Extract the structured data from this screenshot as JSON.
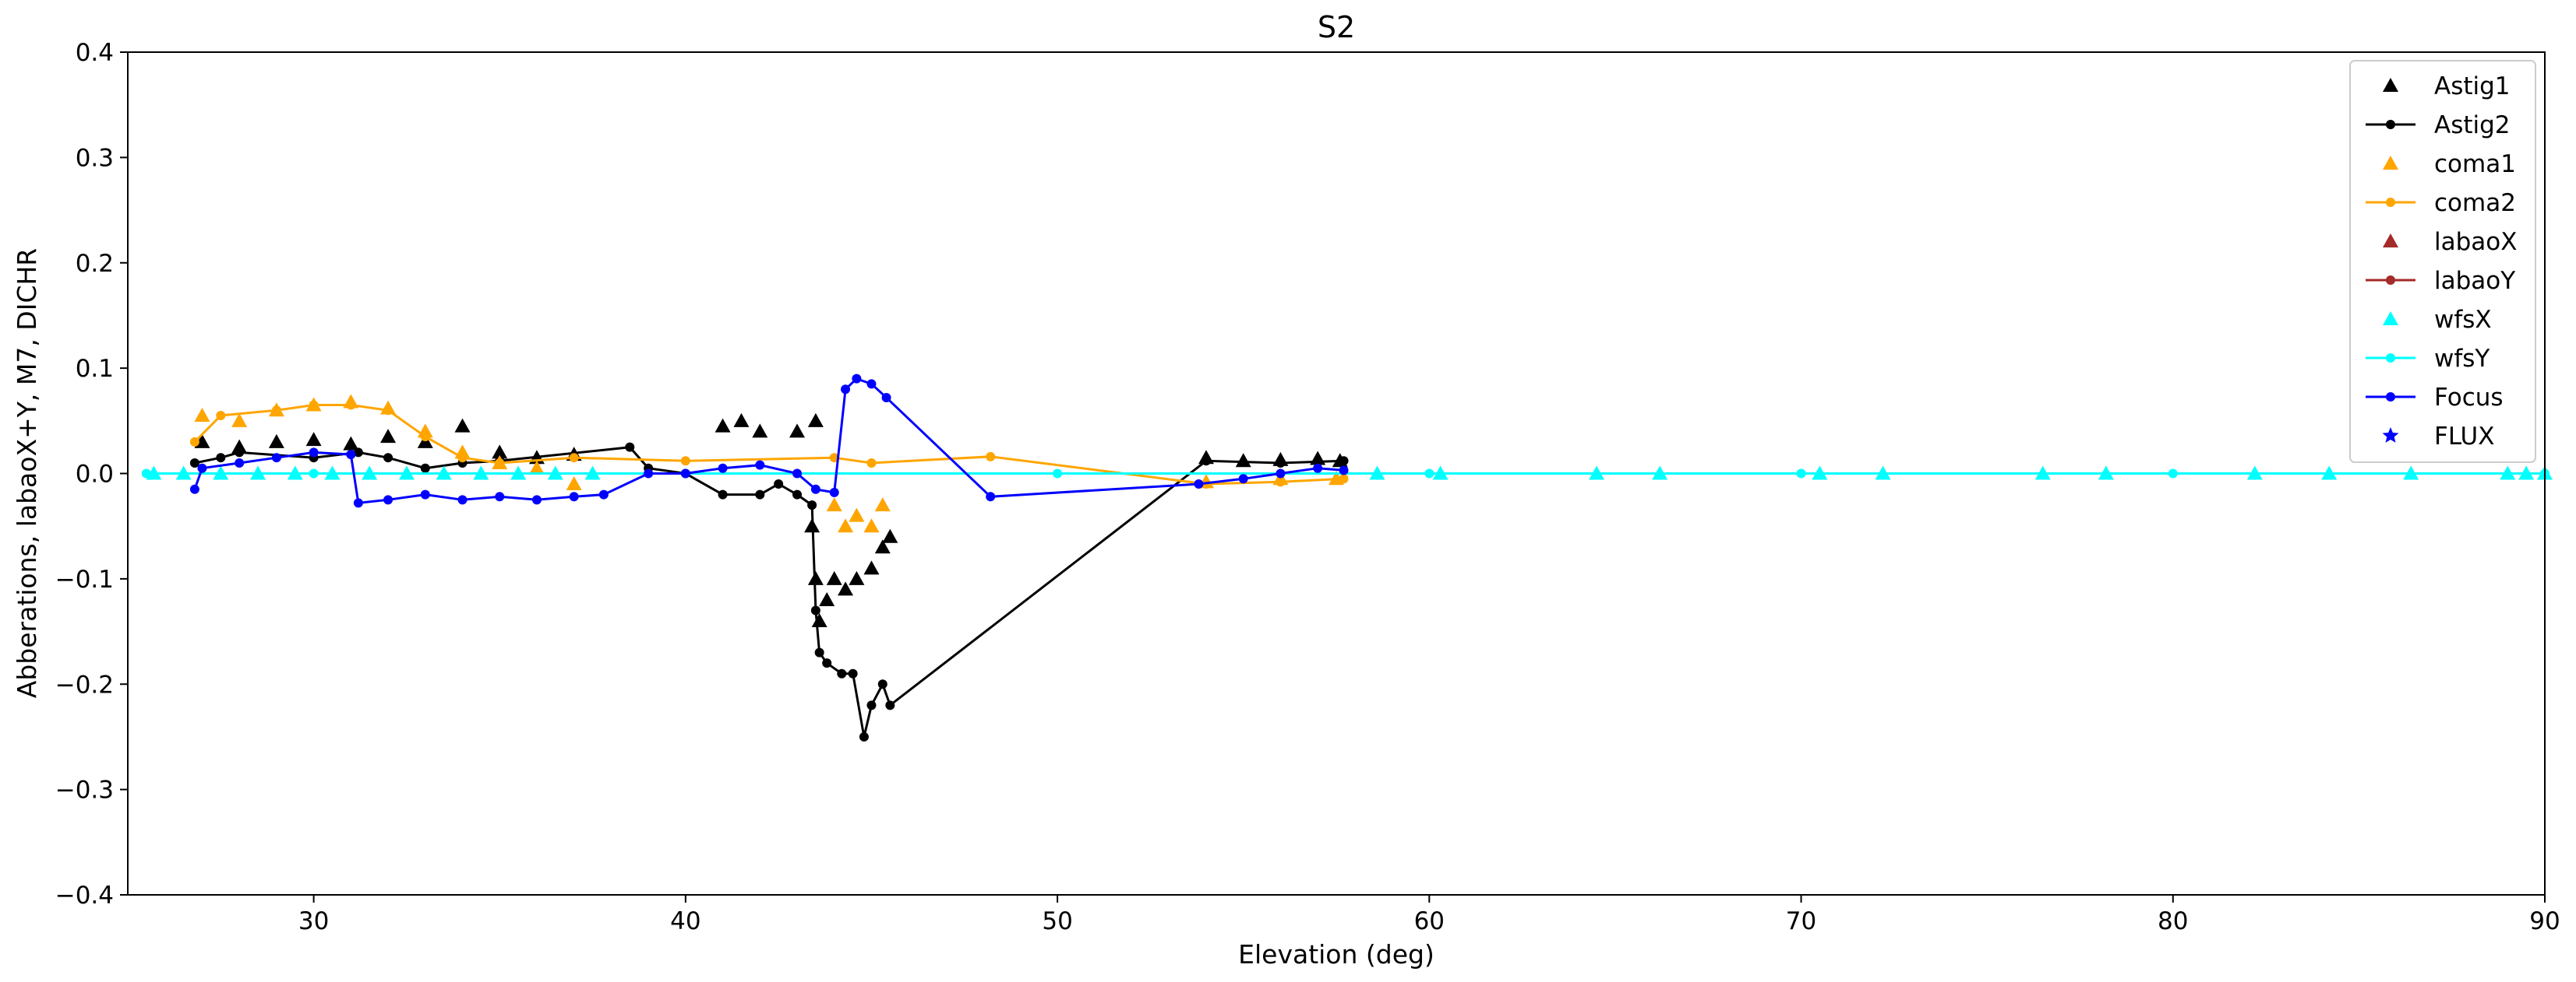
{
  "chart_data": {
    "type": "scatter",
    "title": "S2",
    "xlabel": "Elevation (deg)",
    "ylabel": "Abberations, labaoX+Y, M7, DICHR",
    "xlim": [
      25,
      90
    ],
    "ylim": [
      -0.4,
      0.4
    ],
    "xticks": [
      "30",
      "40",
      "50",
      "60",
      "70",
      "80",
      "90"
    ],
    "yticks": [
      "−0.4",
      "−0.3",
      "−0.2",
      "−0.1",
      "0.0",
      "0.1",
      "0.2",
      "0.3",
      "0.4"
    ],
    "grid": false,
    "legend_position": "top-right",
    "series": [
      {
        "name": "Astig1",
        "color": "#000000",
        "marker": "triangle",
        "line": false,
        "points": [
          [
            27,
            0.03
          ],
          [
            28,
            0.025
          ],
          [
            29,
            0.03
          ],
          [
            30,
            0.032
          ],
          [
            31,
            0.028
          ],
          [
            32,
            0.035
          ],
          [
            33,
            0.03
          ],
          [
            34,
            0.045
          ],
          [
            35,
            0.02
          ],
          [
            36,
            0.015
          ],
          [
            37,
            0.018
          ],
          [
            41,
            0.045
          ],
          [
            41.5,
            0.05
          ],
          [
            42,
            0.04
          ],
          [
            43,
            0.04
          ],
          [
            43.5,
            0.05
          ],
          [
            43.4,
            -0.05
          ],
          [
            43.5,
            -0.1
          ],
          [
            43.6,
            -0.14
          ],
          [
            43.8,
            -0.12
          ],
          [
            44,
            -0.1
          ],
          [
            44.3,
            -0.11
          ],
          [
            44.6,
            -0.1
          ],
          [
            45,
            -0.09
          ],
          [
            45.3,
            -0.07
          ],
          [
            45.5,
            -0.06
          ],
          [
            54,
            0.015
          ],
          [
            55,
            0.012
          ],
          [
            56,
            0.013
          ],
          [
            57,
            0.014
          ],
          [
            57.6,
            0.012
          ]
        ]
      },
      {
        "name": "Astig2",
        "color": "#000000",
        "marker": "dot",
        "line": true,
        "points": [
          [
            26.8,
            0.01
          ],
          [
            27.5,
            0.015
          ],
          [
            28,
            0.02
          ],
          [
            30,
            0.015
          ],
          [
            31.2,
            0.02
          ],
          [
            32,
            0.015
          ],
          [
            33,
            0.005
          ],
          [
            34,
            0.01
          ],
          [
            35,
            0.012
          ],
          [
            38.5,
            0.025
          ],
          [
            39,
            0.005
          ],
          [
            40,
            0.0
          ],
          [
            41,
            -0.02
          ],
          [
            42,
            -0.02
          ],
          [
            42.5,
            -0.01
          ],
          [
            43,
            -0.02
          ],
          [
            43.4,
            -0.03
          ],
          [
            43.5,
            -0.13
          ],
          [
            43.6,
            -0.17
          ],
          [
            43.8,
            -0.18
          ],
          [
            44.2,
            -0.19
          ],
          [
            44.5,
            -0.19
          ],
          [
            44.8,
            -0.25
          ],
          [
            45,
            -0.22
          ],
          [
            45.3,
            -0.2
          ],
          [
            45.5,
            -0.22
          ],
          [
            54,
            0.012
          ],
          [
            56,
            0.01
          ],
          [
            57.7,
            0.012
          ]
        ]
      },
      {
        "name": "coma1",
        "color": "#ffa500",
        "marker": "triangle",
        "line": false,
        "points": [
          [
            27,
            0.055
          ],
          [
            28,
            0.05
          ],
          [
            29,
            0.06
          ],
          [
            30,
            0.065
          ],
          [
            31,
            0.068
          ],
          [
            32,
            0.062
          ],
          [
            33,
            0.04
          ],
          [
            34,
            0.02
          ],
          [
            35,
            0.01
          ],
          [
            36,
            0.005
          ],
          [
            37,
            -0.01
          ],
          [
            44,
            -0.03
          ],
          [
            44.3,
            -0.05
          ],
          [
            44.6,
            -0.04
          ],
          [
            45,
            -0.05
          ],
          [
            45.3,
            -0.03
          ],
          [
            54,
            -0.008
          ],
          [
            56,
            -0.005
          ],
          [
            57.5,
            -0.005
          ]
        ]
      },
      {
        "name": "coma2",
        "color": "#ffa500",
        "marker": "dot",
        "line": true,
        "points": [
          [
            26.8,
            0.03
          ],
          [
            27.5,
            0.055
          ],
          [
            29,
            0.06
          ],
          [
            30,
            0.065
          ],
          [
            31,
            0.065
          ],
          [
            32,
            0.06
          ],
          [
            33,
            0.035
          ],
          [
            34,
            0.015
          ],
          [
            35,
            0.01
          ],
          [
            37,
            0.015
          ],
          [
            40,
            0.012
          ],
          [
            44,
            0.015
          ],
          [
            45,
            0.01
          ],
          [
            48.2,
            0.016
          ],
          [
            54,
            -0.01
          ],
          [
            56,
            -0.008
          ],
          [
            57.7,
            -0.005
          ]
        ]
      },
      {
        "name": "labaoX",
        "color": "#a52a2a",
        "marker": "triangle",
        "line": false,
        "points": []
      },
      {
        "name": "labaoY",
        "color": "#a52a2a",
        "marker": "dot",
        "line": true,
        "points": []
      },
      {
        "name": "wfsX",
        "color": "#00ffff",
        "marker": "triangle",
        "line": false,
        "points": [
          [
            25.7,
            0.0
          ],
          [
            26.5,
            0.0
          ],
          [
            27.5,
            0.0
          ],
          [
            28.5,
            0.0
          ],
          [
            29.5,
            0.0
          ],
          [
            30.5,
            0.0
          ],
          [
            31.5,
            0.0
          ],
          [
            32.5,
            0.0
          ],
          [
            33.5,
            0.0
          ],
          [
            34.5,
            0.0
          ],
          [
            35.5,
            0.0
          ],
          [
            36.5,
            0.0
          ],
          [
            37.5,
            0.0
          ],
          [
            58.6,
            0.0
          ],
          [
            60.3,
            0.0
          ],
          [
            64.5,
            0.0
          ],
          [
            66.2,
            0.0
          ],
          [
            70.5,
            0.0
          ],
          [
            72.2,
            0.0
          ],
          [
            76.5,
            0.0
          ],
          [
            78.2,
            0.0
          ],
          [
            82.2,
            0.0
          ],
          [
            84.2,
            0.0
          ],
          [
            86.4,
            0.0
          ],
          [
            89.0,
            0.0
          ],
          [
            89.5,
            0.0
          ],
          [
            90.0,
            0.0
          ]
        ]
      },
      {
        "name": "wfsY",
        "color": "#00ffff",
        "marker": "dot",
        "line": true,
        "points": [
          [
            25.5,
            0.0
          ],
          [
            30,
            0.0
          ],
          [
            40,
            0.0
          ],
          [
            50,
            0.0
          ],
          [
            60,
            0.0
          ],
          [
            70,
            0.0
          ],
          [
            80,
            0.0
          ],
          [
            90,
            0.0
          ]
        ]
      },
      {
        "name": "Focus",
        "color": "#0000ff",
        "marker": "dot",
        "line": true,
        "points": [
          [
            26.8,
            -0.015
          ],
          [
            27,
            0.005
          ],
          [
            28,
            0.01
          ],
          [
            29,
            0.015
          ],
          [
            30,
            0.02
          ],
          [
            31,
            0.018
          ],
          [
            31.2,
            -0.028
          ],
          [
            32,
            -0.025
          ],
          [
            33,
            -0.02
          ],
          [
            34,
            -0.025
          ],
          [
            35,
            -0.022
          ],
          [
            36,
            -0.025
          ],
          [
            37,
            -0.022
          ],
          [
            37.8,
            -0.02
          ],
          [
            39,
            0.0
          ],
          [
            40,
            0.0
          ],
          [
            41,
            0.005
          ],
          [
            42,
            0.008
          ],
          [
            43,
            0.0
          ],
          [
            43.5,
            -0.015
          ],
          [
            44,
            -0.018
          ],
          [
            44.3,
            0.08
          ],
          [
            44.6,
            0.09
          ],
          [
            45,
            0.085
          ],
          [
            45.4,
            0.072
          ],
          [
            48.2,
            -0.022
          ],
          [
            53.8,
            -0.01
          ],
          [
            55,
            -0.005
          ],
          [
            56,
            0.0
          ],
          [
            57,
            0.005
          ],
          [
            57.7,
            0.003
          ]
        ]
      },
      {
        "name": "FLUX",
        "color": "#0000ff",
        "marker": "star",
        "line": false,
        "points": []
      }
    ]
  }
}
